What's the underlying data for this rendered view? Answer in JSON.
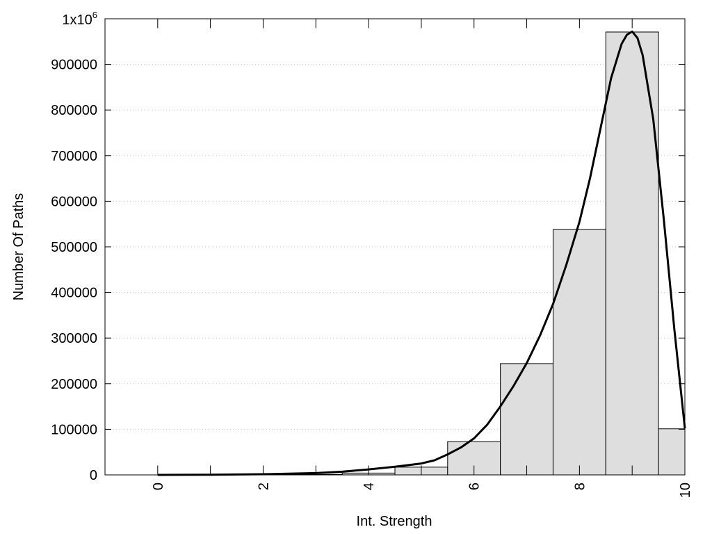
{
  "chart_data": {
    "type": "bar",
    "xlabel": "Int. Strength",
    "ylabel": "Number Of Paths",
    "xlim": [
      -1,
      10
    ],
    "ylim": [
      0,
      1000000
    ],
    "xticks": [
      0,
      2,
      4,
      6,
      8,
      10
    ],
    "xtick_labels": [
      "0",
      "2",
      "4",
      "6",
      "8",
      "10"
    ],
    "yticks": [
      0,
      100000,
      200000,
      300000,
      400000,
      500000,
      600000,
      700000,
      800000,
      900000
    ],
    "ytick_labels": [
      "0",
      "100000",
      "200000",
      "300000",
      "400000",
      "500000",
      "600000",
      "700000",
      "800000",
      "900000"
    ],
    "ytop_label": {
      "base": "1x10",
      "exp": "6"
    },
    "grid": "horizontal dotted",
    "bar_color": "#dedede",
    "bars": [
      {
        "x": 0,
        "value": 0
      },
      {
        "x": 1,
        "value": 0
      },
      {
        "x": 2,
        "value": 200
      },
      {
        "x": 3,
        "value": 1000
      },
      {
        "x": 4,
        "value": 4000
      },
      {
        "x": 5,
        "value": 17000
      },
      {
        "x": 6,
        "value": 73000
      },
      {
        "x": 7,
        "value": 244000
      },
      {
        "x": 8,
        "value": 538000
      },
      {
        "x": 9,
        "value": 971000
      },
      {
        "x": 10,
        "value": 101000
      }
    ],
    "fit_curve": {
      "x": [
        0,
        1,
        2,
        3,
        3.5,
        4,
        4.5,
        5,
        5.25,
        5.5,
        5.75,
        6,
        6.25,
        6.5,
        6.75,
        7,
        7.25,
        7.5,
        7.75,
        8,
        8.2,
        8.4,
        8.6,
        8.8,
        8.9,
        9,
        9.1,
        9.2,
        9.4,
        9.6,
        9.8,
        10
      ],
      "y": [
        0,
        500,
        1500,
        4000,
        7000,
        12000,
        18000,
        25000,
        32000,
        45000,
        60000,
        80000,
        110000,
        150000,
        195000,
        245000,
        305000,
        375000,
        460000,
        555000,
        650000,
        760000,
        870000,
        945000,
        965000,
        972000,
        958000,
        920000,
        780000,
        560000,
        320000,
        102000
      ]
    }
  }
}
